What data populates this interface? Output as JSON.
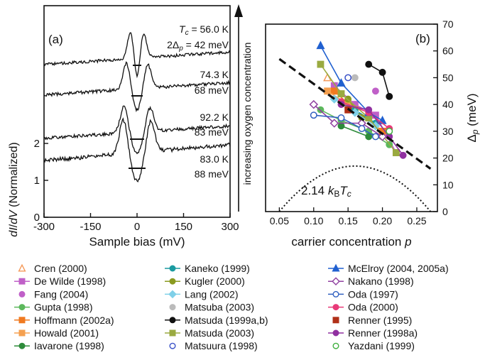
{
  "panel_a": {
    "label": "(a)",
    "xlabel": "Sample bias  (mV)",
    "ylabel_parts": [
      "dI",
      "/",
      "dV",
      "  (Normalized)"
    ],
    "x_ticks": [
      "-300",
      "-150",
      "0",
      "150",
      "300"
    ],
    "y_ticks": [
      "0",
      "1",
      "2"
    ],
    "arrow_label": "increasing oxygen concentration",
    "spectra": [
      {
        "temp": "T",
        "temp_sub": "c",
        "temp_rest": " = 56.0 K",
        "gap": "2Δ",
        "gap_sub": "p",
        "gap_rest": " = 42 meV",
        "gap_meV": 42,
        "offset": 3.0
      },
      {
        "temp": "74.3 K",
        "gap": "68 meV",
        "gap_meV": 68,
        "offset": 2.0
      },
      {
        "temp": "92.2 K",
        "gap": "83 meV",
        "gap_meV": 83,
        "offset": 1.0
      },
      {
        "temp": "83.0 K",
        "gap": "88 meV",
        "gap_meV": 88,
        "offset": 0.0
      }
    ]
  },
  "panel_b": {
    "label": "(b)",
    "annotation_num": "2.14 ",
    "annotation_k": "k",
    "annotation_b": "B",
    "annotation_t": "T",
    "annotation_c": "c",
    "x_ticks": [
      "0.05",
      "0.10",
      "0.15",
      "0.20",
      "0.25"
    ],
    "y_ticks": [
      "0",
      "10",
      "20",
      "30",
      "40",
      "50",
      "60",
      "70"
    ]
  },
  "chart_data": [
    {
      "type": "line",
      "panel": "(a)",
      "xlabel": "Sample bias  (mV)",
      "ylabel": "dI/dV  (Normalized)",
      "xlim": [
        -300,
        300
      ],
      "ylim": [
        0,
        2
      ],
      "series": [
        {
          "name": "Tc = 56.0 K, 2Δp = 42 meV",
          "gap_meV": 42,
          "offset": 3.0
        },
        {
          "name": "74.3 K, 68 meV",
          "gap_meV": 68,
          "offset": 2.0
        },
        {
          "name": "92.2 K, 83 meV",
          "gap_meV": 83,
          "offset": 1.0
        },
        {
          "name": "83.0 K, 88 meV",
          "gap_meV": 88,
          "offset": 0.0
        }
      ]
    },
    {
      "type": "scatter",
      "panel": "(b)",
      "xlabel": "carrier concentration p",
      "ylabel": "Δp (meV)",
      "xlim": [
        0.03,
        0.28
      ],
      "ylim": [
        0,
        70
      ],
      "fit_line": {
        "x": [
          0.05,
          0.27
        ],
        "y": [
          57,
          16
        ]
      },
      "dome": {
        "label": "2.14 kB Tc",
        "peak": [
          0.16,
          17
        ],
        "x_ends": [
          0.05,
          0.27
        ]
      },
      "series": [
        {
          "name": "Cren (2000)",
          "color": "#f59a5a",
          "marker": "triangle-open",
          "x": [
            0.12
          ],
          "y": [
            50
          ]
        },
        {
          "name": "De Wilde (1998)",
          "color": "#c060c8",
          "marker": "square",
          "x": [
            0.13,
            0.16,
            0.19,
            0.22
          ],
          "y": [
            47,
            40,
            36,
            22
          ]
        },
        {
          "name": "Fang (2004)",
          "color": "#c060c8",
          "marker": "circle",
          "x": [
            0.19
          ],
          "y": [
            45
          ]
        },
        {
          "name": "Gupta (1998)",
          "color": "#5cb85c",
          "marker": "circle",
          "x": [
            0.11,
            0.14,
            0.18,
            0.21
          ],
          "y": [
            38,
            34,
            30,
            25
          ]
        },
        {
          "name": "Hoffmann (2002a)",
          "color": "#f07a20",
          "marker": "square",
          "x": [
            0.13,
            0.16,
            0.2
          ],
          "y": [
            45,
            38,
            30
          ]
        },
        {
          "name": "Howald (2001)",
          "color": "#f5a050",
          "marker": "square",
          "x": [
            0.12,
            0.15
          ],
          "y": [
            45,
            40
          ]
        },
        {
          "name": "Iavarone (1998)",
          "color": "#2e8b3a",
          "marker": "circle",
          "x": [
            0.14,
            0.18
          ],
          "y": [
            32,
            28
          ]
        },
        {
          "name": "Kaneko (1999)",
          "color": "#1a9aa0",
          "marker": "circle",
          "x": [
            0.16,
            0.19
          ],
          "y": [
            38,
            33
          ]
        },
        {
          "name": "Kugler (2000)",
          "color": "#8a9a20",
          "marker": "circle",
          "x": [
            0.15,
            0.17
          ],
          "y": [
            42,
            35
          ]
        },
        {
          "name": "Lang (2002)",
          "color": "#7fd0e8",
          "marker": "diamond",
          "x": [
            0.13,
            0.16,
            0.19
          ],
          "y": [
            42,
            37,
            32
          ]
        },
        {
          "name": "Matsuba (2003)",
          "color": "#bbbbbb",
          "marker": "circle",
          "x": [
            0.16
          ],
          "y": [
            50
          ]
        },
        {
          "name": "Matsuda (1999a,b)",
          "color": "#111111",
          "marker": "circle",
          "x": [
            0.18,
            0.2,
            0.21
          ],
          "y": [
            55,
            52,
            43
          ]
        },
        {
          "name": "Matsuda (2003)",
          "color": "#9aaa40",
          "marker": "square",
          "x": [
            0.11,
            0.14,
            0.18,
            0.22
          ],
          "y": [
            55,
            44,
            35,
            22
          ]
        },
        {
          "name": "Matsuura (1998)",
          "color": "#3a52c8",
          "marker": "circle-open",
          "x": [
            0.15
          ],
          "y": [
            50
          ]
        },
        {
          "name": "McElroy (2004, 2005a)",
          "color": "#2060d0",
          "marker": "triangle",
          "x": [
            0.11,
            0.14,
            0.18,
            0.2
          ],
          "y": [
            62,
            48,
            37,
            34
          ]
        },
        {
          "name": "Nakano (1998)",
          "color": "#9040a0",
          "marker": "diamond-open",
          "x": [
            0.1,
            0.13,
            0.17,
            0.2
          ],
          "y": [
            40,
            33,
            33,
            28
          ]
        },
        {
          "name": "Oda (1997)",
          "color": "#3060c0",
          "marker": "circle-open",
          "x": [
            0.1,
            0.14,
            0.17,
            0.19
          ],
          "y": [
            36,
            35,
            31,
            28
          ]
        },
        {
          "name": "Oda (2000)",
          "color": "#e83a78",
          "marker": "circle",
          "x": [
            0.14,
            0.18,
            0.21
          ],
          "y": [
            41,
            37,
            31
          ]
        },
        {
          "name": "Renner (1995)",
          "color": "#b03018",
          "marker": "square",
          "x": [
            0.15
          ],
          "y": [
            38
          ]
        },
        {
          "name": "Renner (1998a)",
          "color": "#9030a0",
          "marker": "circle",
          "x": [
            0.14,
            0.18,
            0.21,
            0.23
          ],
          "y": [
            40,
            38,
            28,
            21
          ]
        },
        {
          "name": "Yazdani (1999)",
          "color": "#40b040",
          "marker": "circle-open",
          "x": [
            0.21
          ],
          "y": [
            30
          ]
        }
      ]
    }
  ]
}
